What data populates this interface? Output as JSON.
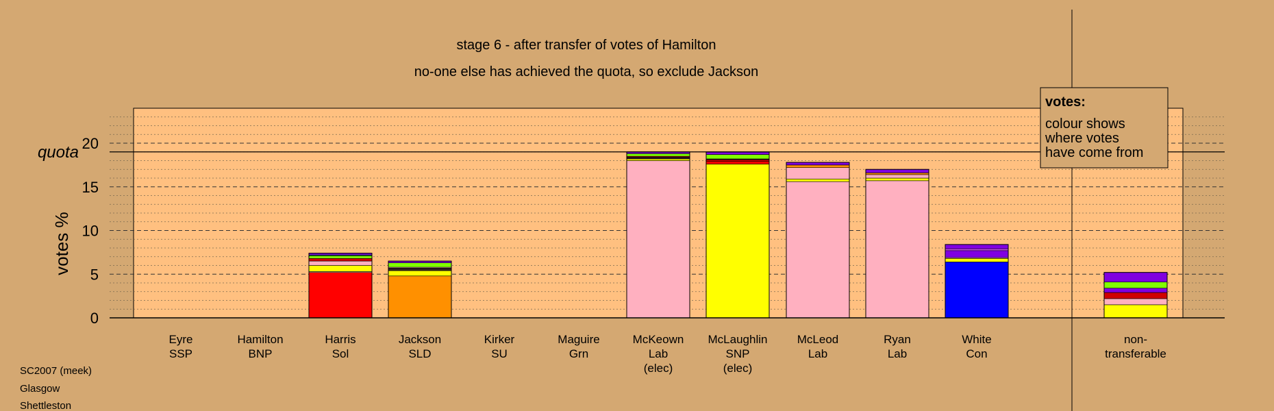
{
  "chart_data": {
    "type": "bar",
    "stacked": true,
    "title": "stage 6 - after transfer of votes of Hamilton",
    "subtitle": "no-one else has achieved the quota, so exclude Jackson",
    "ylabel": "votes %",
    "ylim": [
      0,
      24
    ],
    "yticks": [
      0,
      5,
      10,
      15,
      20
    ],
    "grid": true,
    "quota": {
      "label": "quota",
      "value": 19.0
    },
    "candidates": [
      {
        "name": "Eyre",
        "party": "SSP",
        "note": "",
        "segments": []
      },
      {
        "name": "Hamilton",
        "party": "BNP",
        "note": "",
        "segments": []
      },
      {
        "name": "Harris",
        "party": "Sol",
        "note": "",
        "segments": [
          {
            "color": "#ff0000",
            "value": 5.2
          },
          {
            "color": "#ffffcc",
            "value": 0.1
          },
          {
            "color": "#ffff00",
            "value": 0.7
          },
          {
            "color": "#ffb0c0",
            "value": 0.5
          },
          {
            "color": "#d00000",
            "value": 0.3
          },
          {
            "color": "#80ff00",
            "value": 0.3
          },
          {
            "color": "#20a060",
            "value": 0.1
          },
          {
            "color": "#8000e0",
            "value": 0.2
          }
        ]
      },
      {
        "name": "Jackson",
        "party": "SLD",
        "note": "",
        "segments": [
          {
            "color": "#ff9000",
            "value": 4.8
          },
          {
            "color": "#ffff00",
            "value": 0.6
          },
          {
            "color": "#302020",
            "value": 0.3
          },
          {
            "color": "#ffb0c0",
            "value": 0.1
          },
          {
            "color": "#80ff00",
            "value": 0.5
          },
          {
            "color": "#8000e0",
            "value": 0.2
          }
        ]
      },
      {
        "name": "Kirker",
        "party": "SU",
        "note": "",
        "segments": []
      },
      {
        "name": "Maguire",
        "party": "Grn",
        "note": "",
        "segments": []
      },
      {
        "name": "McKeown",
        "party": "Lab",
        "note": "(elec)",
        "segments": [
          {
            "color": "#ffb0c0",
            "value": 18.0
          },
          {
            "color": "#ffff00",
            "value": 0.2
          },
          {
            "color": "#302020",
            "value": 0.2
          },
          {
            "color": "#d00000",
            "value": 0.1
          },
          {
            "color": "#80ff00",
            "value": 0.3
          },
          {
            "color": "#8000e0",
            "value": 0.2
          }
        ]
      },
      {
        "name": "McLaughlin",
        "party": "SNP",
        "note": "(elec)",
        "segments": [
          {
            "color": "#ffff00",
            "value": 17.6
          },
          {
            "color": "#ff0000",
            "value": 0.3
          },
          {
            "color": "#d00000",
            "value": 0.2
          },
          {
            "color": "#302020",
            "value": 0.1
          },
          {
            "color": "#80ff00",
            "value": 0.5
          },
          {
            "color": "#8000e0",
            "value": 0.3
          }
        ]
      },
      {
        "name": "McLeod",
        "party": "Lab",
        "note": "",
        "segments": [
          {
            "color": "#ffb0c0",
            "value": 15.6
          },
          {
            "color": "#ffff00",
            "value": 0.3
          },
          {
            "color": "#ffb0c0",
            "value": 1.3
          },
          {
            "color": "#ff9000",
            "value": 0.3
          },
          {
            "color": "#8000e0",
            "value": 0.3
          }
        ]
      },
      {
        "name": "Ryan",
        "party": "Lab",
        "note": "",
        "segments": [
          {
            "color": "#ffb0c0",
            "value": 15.7
          },
          {
            "color": "#ffff00",
            "value": 0.3
          },
          {
            "color": "#ffb0c0",
            "value": 0.4
          },
          {
            "color": "#ff9000",
            "value": 0.2
          },
          {
            "color": "#8000e0",
            "value": 0.4
          }
        ]
      },
      {
        "name": "White",
        "party": "Con",
        "note": "",
        "segments": [
          {
            "color": "#0000ff",
            "value": 6.4
          },
          {
            "color": "#ffff00",
            "value": 0.4
          },
          {
            "color": "#ffb0c0",
            "value": 0.1
          },
          {
            "color": "#8000e0",
            "value": 0.8
          },
          {
            "color": "#d050ff",
            "value": 0.2
          },
          {
            "color": "#8000e0",
            "value": 0.5
          }
        ]
      },
      {
        "name": "non-",
        "party": "transferable",
        "note": "",
        "segments": [
          {
            "color": "#ffff00",
            "value": 1.5
          },
          {
            "color": "#ffb0c0",
            "value": 0.7
          },
          {
            "color": "#d00000",
            "value": 0.7
          },
          {
            "color": "#8000e0",
            "value": 0.5
          },
          {
            "color": "#80ff00",
            "value": 0.7
          },
          {
            "color": "#8000e0",
            "value": 1.1
          }
        ]
      }
    ],
    "legend": {
      "title": "votes:",
      "lines": [
        "colour shows",
        "where votes",
        "have come from"
      ],
      "placement": "top-right"
    },
    "colors": {
      "background": "#d4a872",
      "plot_background": "#ffc080"
    }
  },
  "footer": {
    "lines": [
      "SC2007 (meek)",
      "Glasgow",
      "Shettleston"
    ]
  }
}
